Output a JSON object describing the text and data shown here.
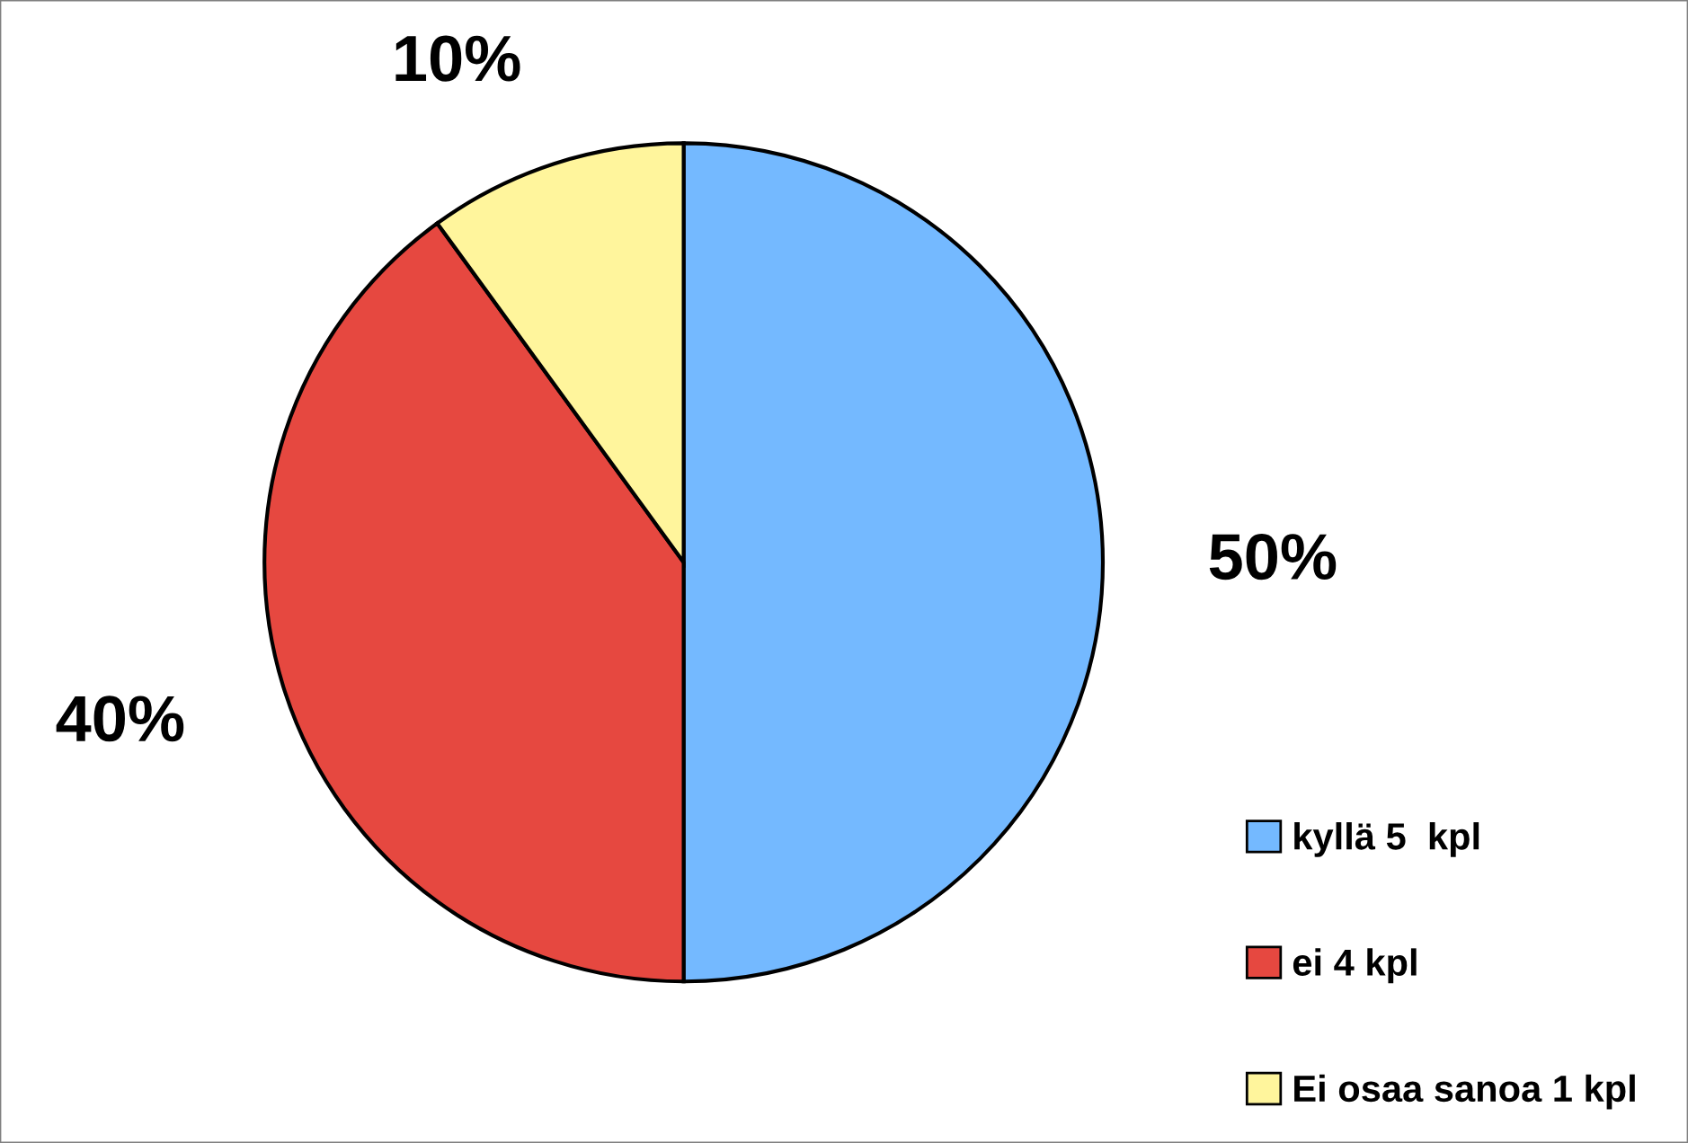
{
  "chart_data": {
    "type": "pie",
    "categories": [
      "kyllä 5  kpl",
      "ei 4 kpl",
      "Ei osaa sanoa 1 kpl"
    ],
    "values": [
      50,
      40,
      10
    ],
    "colors": [
      "#74b9ff",
      "#e64840",
      "#fff59c"
    ],
    "value_labels": [
      "50%",
      "40%",
      "10%"
    ],
    "legend": "bottom right"
  }
}
